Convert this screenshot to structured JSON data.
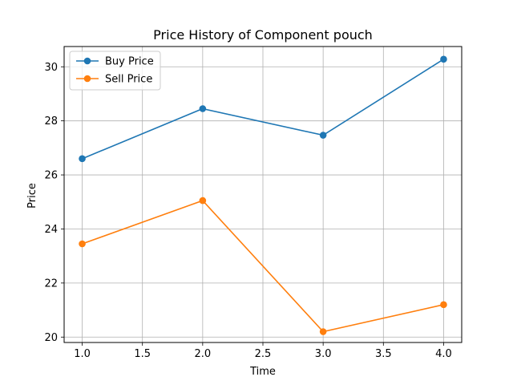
{
  "chart_data": {
    "type": "line",
    "title": "Price History of Component pouch",
    "xlabel": "Time",
    "ylabel": "Price",
    "x": [
      1,
      2,
      3,
      4
    ],
    "xlim": [
      0.85,
      4.15
    ],
    "ylim": [
      19.8,
      30.75
    ],
    "xticks": [
      1.0,
      1.5,
      2.0,
      2.5,
      3.0,
      3.5,
      4.0
    ],
    "xtick_labels": [
      "1.0",
      "1.5",
      "2.0",
      "2.5",
      "3.0",
      "3.5",
      "4.0"
    ],
    "yticks": [
      20,
      22,
      24,
      26,
      28,
      30
    ],
    "ytick_labels": [
      "20",
      "22",
      "24",
      "26",
      "28",
      "30"
    ],
    "grid": true,
    "legend_position": "top-left",
    "series": [
      {
        "name": "Buy Price",
        "color": "#1f77b4",
        "marker": "circle",
        "values": [
          26.6,
          28.45,
          27.47,
          30.28
        ]
      },
      {
        "name": "Sell Price",
        "color": "#ff7f0e",
        "marker": "circle",
        "values": [
          23.45,
          25.05,
          20.2,
          21.2
        ]
      }
    ]
  }
}
